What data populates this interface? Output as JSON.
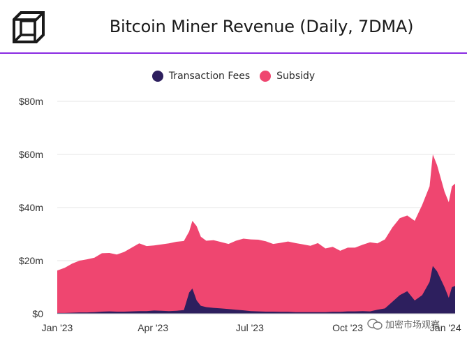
{
  "header": {
    "title": "Bitcoin Miner Revenue (Daily, 7DMA)",
    "logo_icon": "cube-logo-icon"
  },
  "colors": {
    "fees": "#2d1f5e",
    "subsidy": "#ef4670",
    "accent_rule": "#8a2be2",
    "grid": "#e6e6e6"
  },
  "watermark": {
    "text": "加密市场观察",
    "icon": "chat-bubble-icon"
  },
  "chart_data": {
    "type": "area",
    "stacked": true,
    "title": "Bitcoin Miner Revenue (Daily, 7DMA)",
    "xlabel": "",
    "ylabel": "",
    "legend_position": "top-center",
    "grid": true,
    "ylim": [
      0,
      80
    ],
    "y_unit": "$m",
    "y_ticks": [
      "$0",
      "$20m",
      "$40m",
      "$60m",
      "$80m"
    ],
    "y_tick_values": [
      0,
      20,
      40,
      60,
      80
    ],
    "x_ticks": [
      "Jan '23",
      "Apr '23",
      "Jul '23",
      "Oct '23",
      "Jan '24"
    ],
    "x_tick_dates": [
      "2023-01-01",
      "2023-04-01",
      "2023-07-01",
      "2023-10-01",
      "2024-01-01"
    ],
    "x_range": [
      "2023-01-01",
      "2024-01-10"
    ],
    "x": [
      "2023-01-01",
      "2023-01-08",
      "2023-01-15",
      "2023-01-22",
      "2023-01-29",
      "2023-02-05",
      "2023-02-12",
      "2023-02-19",
      "2023-02-26",
      "2023-03-05",
      "2023-03-12",
      "2023-03-19",
      "2023-03-26",
      "2023-04-02",
      "2023-04-09",
      "2023-04-16",
      "2023-04-23",
      "2023-04-30",
      "2023-05-05",
      "2023-05-08",
      "2023-05-12",
      "2023-05-16",
      "2023-05-21",
      "2023-05-28",
      "2023-06-04",
      "2023-06-11",
      "2023-06-18",
      "2023-06-25",
      "2023-07-02",
      "2023-07-09",
      "2023-07-16",
      "2023-07-23",
      "2023-07-30",
      "2023-08-06",
      "2023-08-13",
      "2023-08-20",
      "2023-08-27",
      "2023-09-03",
      "2023-09-10",
      "2023-09-17",
      "2023-09-24",
      "2023-10-01",
      "2023-10-08",
      "2023-10-15",
      "2023-10-22",
      "2023-10-29",
      "2023-11-05",
      "2023-11-12",
      "2023-11-19",
      "2023-11-26",
      "2023-12-03",
      "2023-12-10",
      "2023-12-17",
      "2023-12-20",
      "2023-12-24",
      "2023-12-31",
      "2024-01-04",
      "2024-01-07",
      "2024-01-10"
    ],
    "series": [
      {
        "name": "Transaction Fees",
        "values": [
          0.3,
          0.3,
          0.4,
          0.5,
          0.5,
          0.6,
          0.8,
          0.9,
          0.8,
          0.8,
          0.9,
          1.0,
          1.0,
          1.2,
          1.1,
          1.0,
          1.1,
          1.4,
          8.0,
          9.5,
          5.0,
          3.0,
          2.5,
          2.2,
          2.0,
          1.8,
          1.5,
          1.3,
          1.0,
          0.9,
          0.8,
          0.8,
          0.7,
          0.7,
          0.6,
          0.6,
          0.6,
          0.6,
          0.6,
          0.7,
          0.7,
          0.9,
          0.9,
          1.0,
          0.9,
          1.5,
          2.0,
          4.5,
          7.0,
          8.5,
          5.0,
          7.0,
          12.0,
          18.0,
          16.0,
          10.0,
          6.0,
          10.0,
          10.5
        ]
      },
      {
        "name": "Subsidy",
        "values": [
          16.0,
          17.0,
          18.5,
          19.5,
          20.0,
          20.5,
          22.0,
          22.0,
          21.5,
          22.5,
          24.0,
          25.5,
          24.5,
          24.5,
          25.0,
          25.5,
          26.0,
          26.0,
          23.0,
          25.5,
          28.0,
          26.0,
          25.0,
          25.5,
          25.0,
          24.5,
          26.0,
          27.0,
          27.0,
          27.0,
          26.5,
          25.5,
          26.0,
          26.5,
          26.0,
          25.5,
          25.0,
          26.0,
          24.0,
          24.5,
          23.0,
          24.0,
          24.0,
          25.0,
          26.0,
          25.0,
          26.0,
          28.0,
          29.0,
          28.5,
          30.0,
          34.0,
          36.0,
          42.0,
          40.0,
          36.0,
          36.0,
          38.0,
          38.5
        ]
      }
    ]
  }
}
